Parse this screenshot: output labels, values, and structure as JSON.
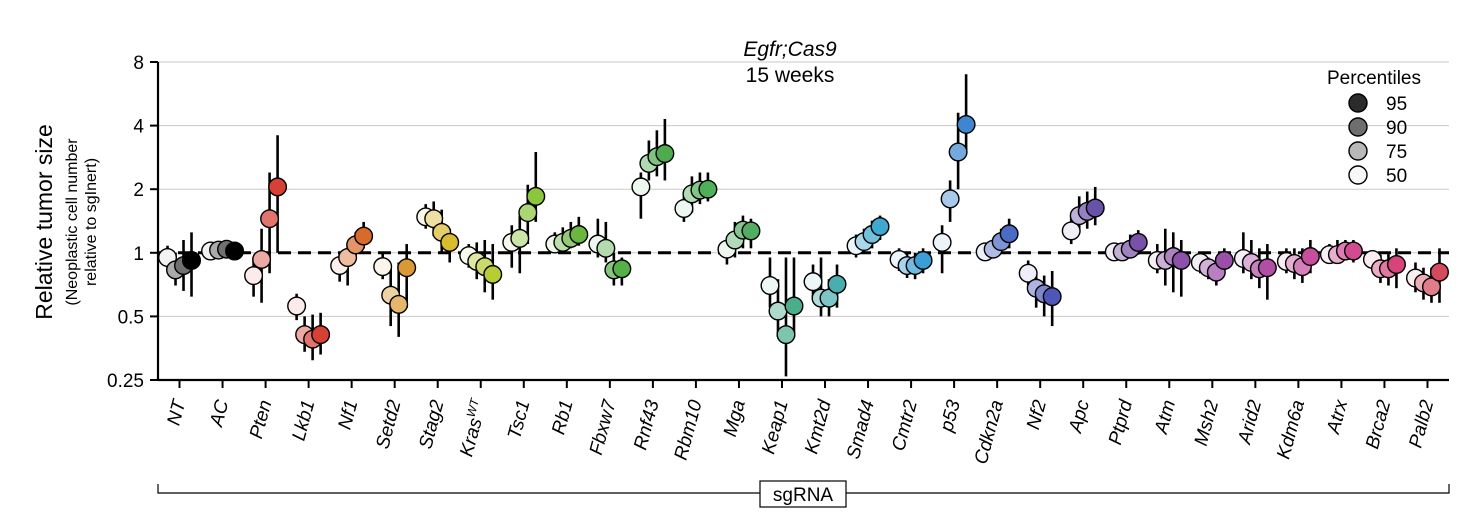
{
  "chart_data": {
    "type": "scatter",
    "title_line1": "Egfr;Cas9",
    "title_line2": "15 weeks",
    "ylabel": "Relative tumor size",
    "ylabel_sub1": "(Neoplastic cell number",
    "ylabel_sub2": "relative to sgInert)",
    "xlabel": "sgRNA",
    "yscale": "log2",
    "ylim": [
      0.25,
      8
    ],
    "yticks": [
      0.25,
      0.5,
      1,
      2,
      4,
      8
    ],
    "ytick_labels": [
      "0.25",
      "0.5",
      "1",
      "2",
      "4",
      "8"
    ],
    "reference_line": 1,
    "legend_title": "Percentiles",
    "percentiles": [
      "95",
      "90",
      "75",
      "50"
    ],
    "legend_grays": [
      "#2b2b2b",
      "#6e6e6e",
      "#b8b8b8",
      "#f7f7f7"
    ],
    "genes": [
      {
        "name": "NT",
        "color": "#000000",
        "p50": 0.95,
        "p75": 0.83,
        "p90": 0.87,
        "p95": 0.92,
        "p50_ci": [
          0.85,
          1.08
        ],
        "p75_ci": [
          0.7,
          1.0
        ],
        "p90_ci": [
          0.66,
          1.15
        ],
        "p95_ci": [
          0.62,
          1.25
        ]
      },
      {
        "name": "AC",
        "color": "#000000",
        "p50": 1.02,
        "p75": 1.03,
        "p90": 1.04,
        "p95": 1.02,
        "p50_ci": [
          0.97,
          1.08
        ],
        "p75_ci": [
          0.97,
          1.1
        ],
        "p90_ci": [
          0.96,
          1.12
        ],
        "p95_ci": [
          0.96,
          1.08
        ]
      },
      {
        "name": "Pten",
        "color": "#d64035",
        "p50": 0.78,
        "p75": 0.93,
        "p90": 1.45,
        "p95": 2.05,
        "p50_ci": [
          0.62,
          0.92
        ],
        "p75_ci": [
          0.58,
          1.3
        ],
        "p90_ci": [
          0.8,
          2.4
        ],
        "p95_ci": [
          1.0,
          3.6
        ]
      },
      {
        "name": "Lkb1",
        "color": "#d64035",
        "p50": 0.56,
        "p75": 0.41,
        "p90": 0.39,
        "p95": 0.41,
        "p50_ci": [
          0.48,
          0.64
        ],
        "p75_ci": [
          0.34,
          0.5
        ],
        "p90_ci": [
          0.31,
          0.51
        ],
        "p95_ci": [
          0.33,
          0.52
        ]
      },
      {
        "name": "Nf1",
        "color": "#d96a2a",
        "p50": 0.87,
        "p75": 0.95,
        "p90": 1.09,
        "p95": 1.2,
        "p50_ci": [
          0.73,
          1.0
        ],
        "p75_ci": [
          0.7,
          1.1
        ],
        "p90_ci": [
          0.93,
          1.25
        ],
        "p95_ci": [
          1.05,
          1.4
        ]
      },
      {
        "name": "Setd2",
        "color": "#d99a35",
        "p50": 0.86,
        "p75": 0.63,
        "p90": 0.57,
        "p95": 0.85,
        "p50_ci": [
          0.75,
          1.0
        ],
        "p75_ci": [
          0.45,
          0.85
        ],
        "p90_ci": [
          0.4,
          0.9
        ],
        "p95_ci": [
          0.55,
          1.1
        ]
      },
      {
        "name": "Stag2",
        "color": "#d9bb30",
        "p50": 1.48,
        "p75": 1.45,
        "p90": 1.25,
        "p95": 1.12,
        "p50_ci": [
          1.3,
          1.7
        ],
        "p75_ci": [
          1.2,
          1.75
        ],
        "p90_ci": [
          1.0,
          1.6
        ],
        "p95_ci": [
          0.9,
          1.3
        ]
      },
      {
        "name": "KrasWT",
        "color": "#b8cc33",
        "p50": 0.97,
        "p75": 0.91,
        "p90": 0.86,
        "p95": 0.79,
        "p50_ci": [
          0.85,
          1.1
        ],
        "p75_ci": [
          0.75,
          1.12
        ],
        "p90_ci": [
          0.65,
          1.15
        ],
        "p95_ci": [
          0.6,
          1.1
        ]
      },
      {
        "name": "Tsc1",
        "color": "#8cc63e",
        "p50": 1.12,
        "p75": 1.17,
        "p90": 1.55,
        "p95": 1.85,
        "p50_ci": [
          0.85,
          1.35
        ],
        "p75_ci": [
          0.8,
          1.5
        ],
        "p90_ci": [
          1.1,
          2.1
        ],
        "p95_ci": [
          1.4,
          3.0
        ]
      },
      {
        "name": "Rb1",
        "color": "#6ab63f",
        "p50": 1.1,
        "p75": 1.12,
        "p90": 1.17,
        "p95": 1.22,
        "p50_ci": [
          1.0,
          1.25
        ],
        "p75_ci": [
          1.0,
          1.32
        ],
        "p90_ci": [
          1.05,
          1.4
        ],
        "p95_ci": [
          1.08,
          1.48
        ]
      },
      {
        "name": "Fbxw7",
        "color": "#55b04a",
        "p50": 1.1,
        "p75": 1.05,
        "p90": 0.83,
        "p95": 0.84,
        "p50_ci": [
          0.95,
          1.45
        ],
        "p75_ci": [
          0.9,
          1.4
        ],
        "p90_ci": [
          0.7,
          1.0
        ],
        "p95_ci": [
          0.7,
          0.95
        ]
      },
      {
        "name": "Rnf43",
        "color": "#4eab4f",
        "p50": 2.05,
        "p75": 2.65,
        "p90": 2.85,
        "p95": 2.95,
        "p50_ci": [
          1.45,
          2.4
        ],
        "p75_ci": [
          2.2,
          3.4
        ],
        "p90_ci": [
          2.3,
          3.8
        ],
        "p95_ci": [
          2.2,
          4.3
        ]
      },
      {
        "name": "Rbm10",
        "color": "#4fb05a",
        "p50": 1.62,
        "p75": 1.9,
        "p90": 1.98,
        "p95": 2.0,
        "p50_ci": [
          1.4,
          1.85
        ],
        "p75_ci": [
          1.55,
          2.3
        ],
        "p90_ci": [
          1.7,
          2.4
        ],
        "p95_ci": [
          1.75,
          2.4
        ]
      },
      {
        "name": "Mga",
        "color": "#52ad62",
        "p50": 1.04,
        "p75": 1.15,
        "p90": 1.28,
        "p95": 1.27,
        "p50_ci": [
          0.88,
          1.18
        ],
        "p75_ci": [
          0.95,
          1.4
        ],
        "p90_ci": [
          1.05,
          1.5
        ],
        "p95_ci": [
          1.05,
          1.45
        ]
      },
      {
        "name": "Keap1",
        "color": "#4aae8c",
        "p50": 0.7,
        "p75": 0.53,
        "p90": 0.41,
        "p95": 0.56,
        "p50_ci": [
          0.55,
          0.95
        ],
        "p75_ci": [
          0.4,
          0.75
        ],
        "p90_ci": [
          0.26,
          0.95
        ],
        "p95_ci": [
          0.4,
          0.95
        ]
      },
      {
        "name": "Kmt2d",
        "color": "#4aaeb0",
        "p50": 0.73,
        "p75": 0.61,
        "p90": 0.61,
        "p95": 0.71,
        "p50_ci": [
          0.6,
          0.88
        ],
        "p75_ci": [
          0.5,
          0.95
        ],
        "p90_ci": [
          0.5,
          0.75
        ],
        "p95_ci": [
          0.55,
          0.88
        ]
      },
      {
        "name": "Smad4",
        "color": "#3da8d0",
        "p50": 1.08,
        "p75": 1.13,
        "p90": 1.22,
        "p95": 1.33,
        "p50_ci": [
          0.95,
          1.22
        ],
        "p75_ci": [
          1.0,
          1.3
        ],
        "p90_ci": [
          1.05,
          1.42
        ],
        "p95_ci": [
          1.15,
          1.5
        ]
      },
      {
        "name": "Cmtr2",
        "color": "#3a9fd6",
        "p50": 0.93,
        "p75": 0.87,
        "p90": 0.87,
        "p95": 0.92,
        "p50_ci": [
          0.82,
          1.05
        ],
        "p75_ci": [
          0.76,
          1.0
        ],
        "p90_ci": [
          0.75,
          1.0
        ],
        "p95_ci": [
          0.8,
          1.05
        ]
      },
      {
        "name": "p53",
        "color": "#3f86d0",
        "p50": 1.12,
        "p75": 1.8,
        "p90": 3.0,
        "p95": 4.05,
        "p50_ci": [
          0.8,
          1.35
        ],
        "p75_ci": [
          1.4,
          2.2
        ],
        "p90_ci": [
          2.0,
          4.6
        ],
        "p95_ci": [
          3.0,
          7.0
        ]
      },
      {
        "name": "Cdkn2a",
        "color": "#4a6bc5",
        "p50": 1.01,
        "p75": 1.04,
        "p90": 1.13,
        "p95": 1.23,
        "p50_ci": [
          0.94,
          1.08
        ],
        "p75_ci": [
          0.95,
          1.15
        ],
        "p90_ci": [
          1.02,
          1.3
        ],
        "p95_ci": [
          1.05,
          1.45
        ]
      },
      {
        "name": "Nf2",
        "color": "#4e57b8",
        "p50": 0.8,
        "p75": 0.68,
        "p90": 0.64,
        "p95": 0.62,
        "p50_ci": [
          0.7,
          0.92
        ],
        "p75_ci": [
          0.55,
          0.8
        ],
        "p90_ci": [
          0.5,
          0.78
        ],
        "p95_ci": [
          0.45,
          0.82
        ]
      },
      {
        "name": "Apc",
        "color": "#6a51a8",
        "p50": 1.27,
        "p75": 1.5,
        "p90": 1.57,
        "p95": 1.63,
        "p50_ci": [
          1.1,
          1.5
        ],
        "p75_ci": [
          1.25,
          1.85
        ],
        "p90_ci": [
          1.3,
          1.95
        ],
        "p95_ci": [
          1.35,
          2.05
        ]
      },
      {
        "name": "Ptprd",
        "color": "#7a51a8",
        "p50": 1.01,
        "p75": 1.01,
        "p90": 1.04,
        "p95": 1.12,
        "p50_ci": [
          0.95,
          1.08
        ],
        "p75_ci": [
          0.95,
          1.1
        ],
        "p90_ci": [
          0.95,
          1.22
        ],
        "p95_ci": [
          0.98,
          1.28
        ]
      },
      {
        "name": "Atm",
        "color": "#8c51a8",
        "p50": 0.92,
        "p75": 0.92,
        "p90": 0.96,
        "p95": 0.92,
        "p50_ci": [
          0.8,
          1.1
        ],
        "p75_ci": [
          0.7,
          1.3
        ],
        "p90_ci": [
          0.65,
          1.25
        ],
        "p95_ci": [
          0.62,
          1.15
        ]
      },
      {
        "name": "Msh2",
        "color": "#9c4fa8",
        "p50": 0.9,
        "p75": 0.85,
        "p90": 0.81,
        "p95": 0.92,
        "p50_ci": [
          0.8,
          1.0
        ],
        "p75_ci": [
          0.75,
          0.95
        ],
        "p90_ci": [
          0.7,
          0.95
        ],
        "p95_ci": [
          0.8,
          1.05
        ]
      },
      {
        "name": "Arid2",
        "color": "#b04fa5",
        "p50": 0.94,
        "p75": 0.9,
        "p90": 0.84,
        "p95": 0.85,
        "p50_ci": [
          0.8,
          1.25
        ],
        "p75_ci": [
          0.75,
          1.15
        ],
        "p90_ci": [
          0.68,
          1.05
        ],
        "p95_ci": [
          0.6,
          1.1
        ]
      },
      {
        "name": "Kdm6a",
        "color": "#c54f9e",
        "p50": 0.91,
        "p75": 0.89,
        "p90": 0.86,
        "p95": 0.96,
        "p50_ci": [
          0.8,
          1.05
        ],
        "p75_ci": [
          0.75,
          1.05
        ],
        "p90_ci": [
          0.72,
          1.05
        ],
        "p95_ci": [
          0.8,
          1.15
        ]
      },
      {
        "name": "Atrx",
        "color": "#d14a92",
        "p50": 0.98,
        "p75": 0.98,
        "p90": 1.02,
        "p95": 1.02,
        "p50_ci": [
          0.9,
          1.1
        ],
        "p75_ci": [
          0.9,
          1.15
        ],
        "p90_ci": [
          0.92,
          1.15
        ],
        "p95_ci": [
          0.9,
          1.15
        ]
      },
      {
        "name": "Brca2",
        "color": "#d6447a",
        "p50": 0.93,
        "p75": 0.84,
        "p90": 0.84,
        "p95": 0.88,
        "p50_ci": [
          0.85,
          1.0
        ],
        "p75_ci": [
          0.72,
          0.98
        ],
        "p90_ci": [
          0.7,
          1.0
        ],
        "p95_ci": [
          0.68,
          1.05
        ]
      },
      {
        "name": "Palb2",
        "color": "#d64a5e",
        "p50": 0.76,
        "p75": 0.72,
        "p90": 0.69,
        "p95": 0.81,
        "p50_ci": [
          0.65,
          0.9
        ],
        "p75_ci": [
          0.6,
          0.85
        ],
        "p90_ci": [
          0.58,
          0.85
        ],
        "p95_ci": [
          0.58,
          1.05
        ]
      }
    ]
  }
}
